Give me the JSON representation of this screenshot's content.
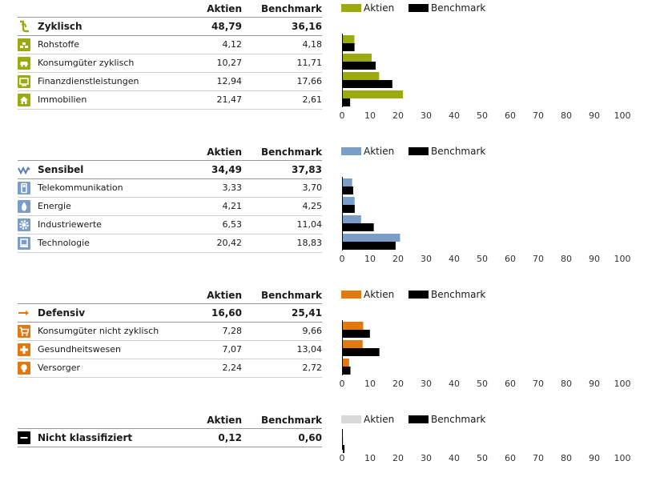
{
  "headers": {
    "aktien": "Aktien",
    "benchmark": "Benchmark"
  },
  "colors": {
    "zyklisch": "#9bab0f",
    "sensibel": "#7b9ec9",
    "defensiv": "#e07a10",
    "nicht": "#d8d8d8",
    "benchmark": "#000000"
  },
  "axis": {
    "ticks": [
      "0",
      "10",
      "20",
      "30",
      "40",
      "50",
      "60",
      "70",
      "80",
      "90",
      "100"
    ],
    "xlim": [
      0,
      100
    ]
  },
  "sections": [
    {
      "id": "zyklisch",
      "title": "Zyklisch",
      "icon": "cyclical-arrow-icon",
      "aktien": "48,79",
      "benchmark": "36,16",
      "rows": [
        {
          "label": "Rohstoffe",
          "icon": "raw-materials-icon",
          "aktien": "4,12",
          "benchmark": "4,18"
        },
        {
          "label": "Konsumgüter zyklisch",
          "icon": "car-icon",
          "aktien": "10,27",
          "benchmark": "11,71"
        },
        {
          "label": "Finanzdienstleistungen",
          "icon": "finance-icon",
          "aktien": "12,94",
          "benchmark": "17,66"
        },
        {
          "label": "Immobilien",
          "icon": "house-icon",
          "aktien": "21,47",
          "benchmark": "2,61"
        }
      ]
    },
    {
      "id": "sensibel",
      "title": "Sensibel",
      "icon": "sensitive-wave-icon",
      "aktien": "34,49",
      "benchmark": "37,83",
      "rows": [
        {
          "label": "Telekommunikation",
          "icon": "phone-icon",
          "aktien": "3,33",
          "benchmark": "3,70"
        },
        {
          "label": "Energie",
          "icon": "flame-icon",
          "aktien": "4,21",
          "benchmark": "4,25"
        },
        {
          "label": "Industriewerte",
          "icon": "gear-icon",
          "aktien": "6,53",
          "benchmark": "11,04"
        },
        {
          "label": "Technologie",
          "icon": "computer-icon",
          "aktien": "20,42",
          "benchmark": "18,83"
        }
      ]
    },
    {
      "id": "defensiv",
      "title": "Defensiv",
      "icon": "defensive-arrow-icon",
      "aktien": "16,60",
      "benchmark": "25,41",
      "rows": [
        {
          "label": "Konsumgüter nicht zyklisch",
          "icon": "shopping-cart-icon",
          "aktien": "7,28",
          "benchmark": "9,66"
        },
        {
          "label": "Gesundheitswesen",
          "icon": "health-cross-icon",
          "aktien": "7,07",
          "benchmark": "13,04"
        },
        {
          "label": "Versorger",
          "icon": "light-bulb-icon",
          "aktien": "2,24",
          "benchmark": "2,72"
        }
      ]
    },
    {
      "id": "nicht",
      "title": "Nicht klassifiziert",
      "icon": "minus-icon",
      "aktien": "0,12",
      "benchmark": "0,60",
      "rows": []
    }
  ],
  "chart_data": [
    {
      "type": "bar",
      "orientation": "horizontal",
      "categories": [
        "Rohstoffe",
        "Konsumgüter zyklisch",
        "Finanzdienstleistungen",
        "Immobilien"
      ],
      "xlim": [
        0,
        100
      ],
      "series": [
        {
          "name": "Aktien",
          "values": [
            4.12,
            10.27,
            12.94,
            21.47
          ]
        },
        {
          "name": "Benchmark",
          "values": [
            4.18,
            11.71,
            17.66,
            2.61
          ]
        }
      ]
    },
    {
      "type": "bar",
      "orientation": "horizontal",
      "categories": [
        "Telekommunikation",
        "Energie",
        "Industriewerte",
        "Technologie"
      ],
      "xlim": [
        0,
        100
      ],
      "series": [
        {
          "name": "Aktien",
          "values": [
            3.33,
            4.21,
            6.53,
            20.42
          ]
        },
        {
          "name": "Benchmark",
          "values": [
            3.7,
            4.25,
            11.04,
            18.83
          ]
        }
      ]
    },
    {
      "type": "bar",
      "orientation": "horizontal",
      "categories": [
        "Konsumgüter nicht zyklisch",
        "Gesundheitswesen",
        "Versorger"
      ],
      "xlim": [
        0,
        100
      ],
      "series": [
        {
          "name": "Aktien",
          "values": [
            7.28,
            7.07,
            2.24
          ]
        },
        {
          "name": "Benchmark",
          "values": [
            9.66,
            13.04,
            2.72
          ]
        }
      ]
    },
    {
      "type": "bar",
      "orientation": "horizontal",
      "categories": [
        "Nicht klassifiziert"
      ],
      "xlim": [
        0,
        100
      ],
      "series": [
        {
          "name": "Aktien",
          "values": [
            0.12
          ]
        },
        {
          "name": "Benchmark",
          "values": [
            0.6
          ]
        }
      ]
    }
  ]
}
